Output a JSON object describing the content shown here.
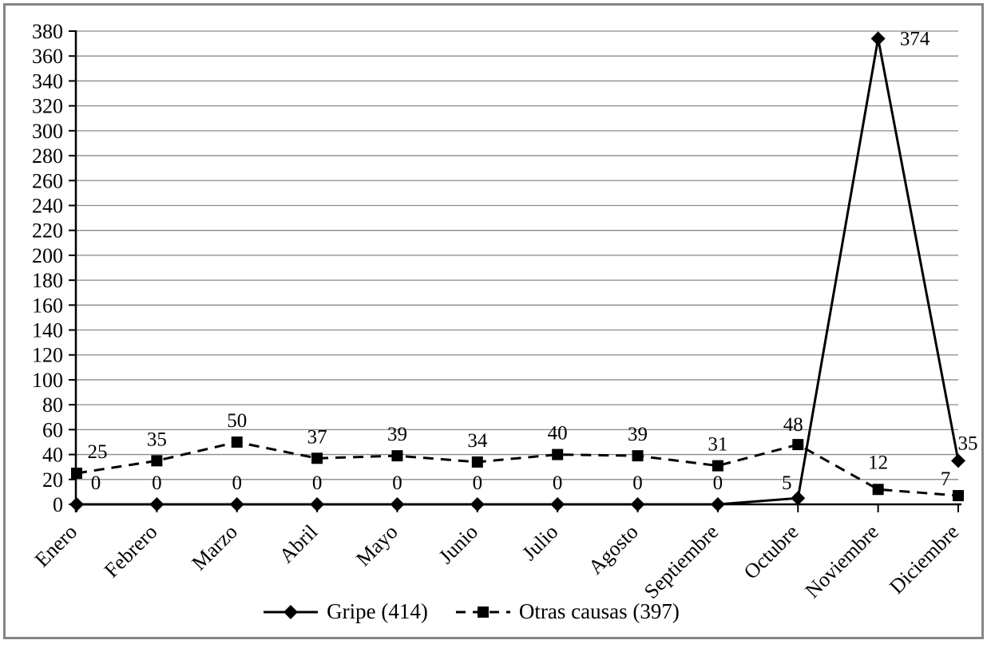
{
  "chart_data": {
    "type": "line",
    "title": "",
    "xlabel": "",
    "ylabel": "",
    "categories": [
      "Enero",
      "Febrero",
      "Marzo",
      "Abril",
      "Mayo",
      "Junio",
      "Julio",
      "Agosto",
      "Septiembre",
      "Octubre",
      "Noviembre",
      "Diciembre"
    ],
    "series": [
      {
        "name": "Gripe (414)",
        "values": [
          0,
          0,
          0,
          0,
          0,
          0,
          0,
          0,
          0,
          5,
          374,
          35
        ],
        "line_style": "solid",
        "marker": "diamond"
      },
      {
        "name": "Otras causas (397)",
        "values": [
          25,
          35,
          50,
          37,
          39,
          34,
          40,
          39,
          31,
          48,
          12,
          7
        ],
        "line_style": "dashed",
        "marker": "square"
      }
    ],
    "ylim": [
      0,
      380
    ],
    "ytick_step": 20,
    "grid": true,
    "data_labels": true,
    "legend_position": "bottom",
    "colors": {
      "series": "#000000",
      "gridline": "#8a8a8a",
      "axis": "#000000",
      "text": "#000000",
      "frame_border": "#848484",
      "background": "#ffffff"
    }
  }
}
